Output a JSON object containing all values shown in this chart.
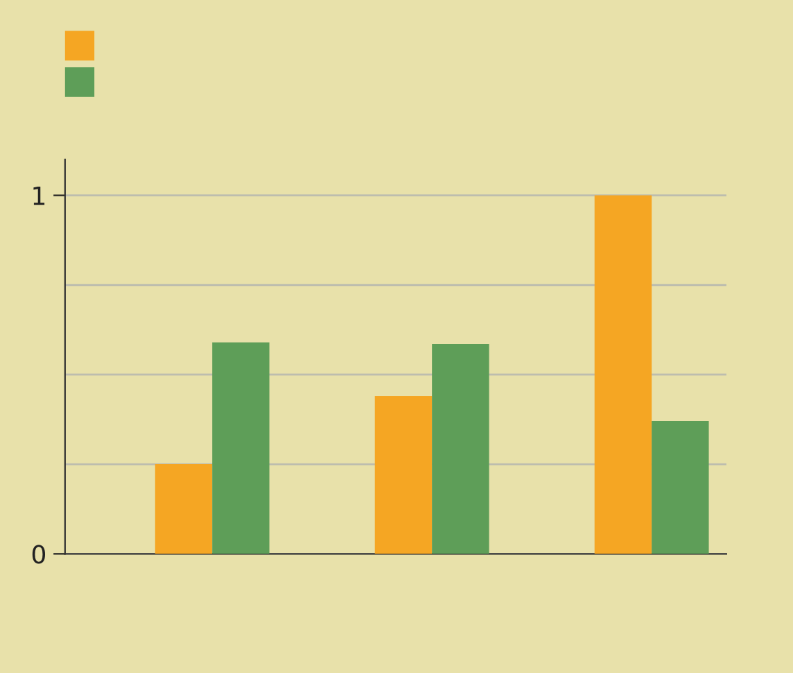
{
  "chart_data": {
    "type": "bar",
    "categories": [
      null,
      null,
      null
    ],
    "series": [
      {
        "color": "#f5a623",
        "values": [
          0.25,
          0.44,
          1.0
        ]
      },
      {
        "color": "#5e9e58",
        "values": [
          0.59,
          0.585,
          0.37
        ]
      }
    ],
    "ylim": [
      0,
      1.1
    ],
    "yticks": [
      0,
      {
        "value": 0.25,
        "label": null
      },
      {
        "value": 0.5,
        "label": null
      },
      {
        "value": 0.75,
        "label": null
      },
      1
    ],
    "grid": "y"
  }
}
